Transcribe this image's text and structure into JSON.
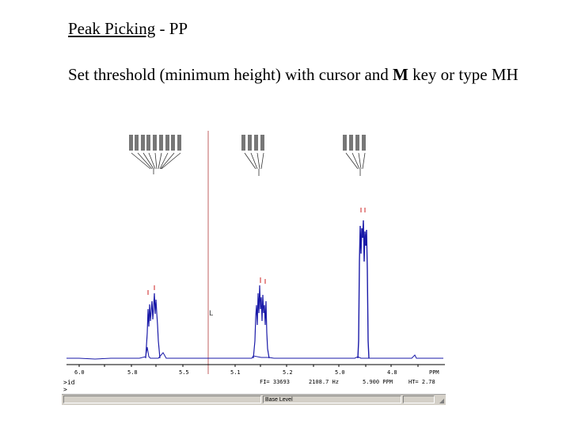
{
  "slide": {
    "title_underlined": "Peak Picking",
    "title_rest": " - PP",
    "body_part1": "Set threshold (minimum height) with cursor and ",
    "body_key": "M",
    "body_part2": " key or type MH"
  },
  "spectrum": {
    "axis_ticks": [
      "6.0",
      "5.8",
      "5.5",
      "5.1",
      "5.2",
      "5.0",
      "4.8",
      "PPM"
    ],
    "info": {
      "fi": "FI= 33693",
      "hz": "2108.7 Hz",
      "ppm": "5.900 PPM",
      "ht": "HT= 2.78"
    },
    "cursor_mark": "L",
    "colors": {
      "trace": "#1a1aa8",
      "cursor": "#d04040",
      "peak_marks": "#cc2020"
    }
  },
  "command_line": {
    "line1": ">id",
    "line2": ">"
  },
  "status_bar": {
    "pane_label": "Base Level"
  }
}
